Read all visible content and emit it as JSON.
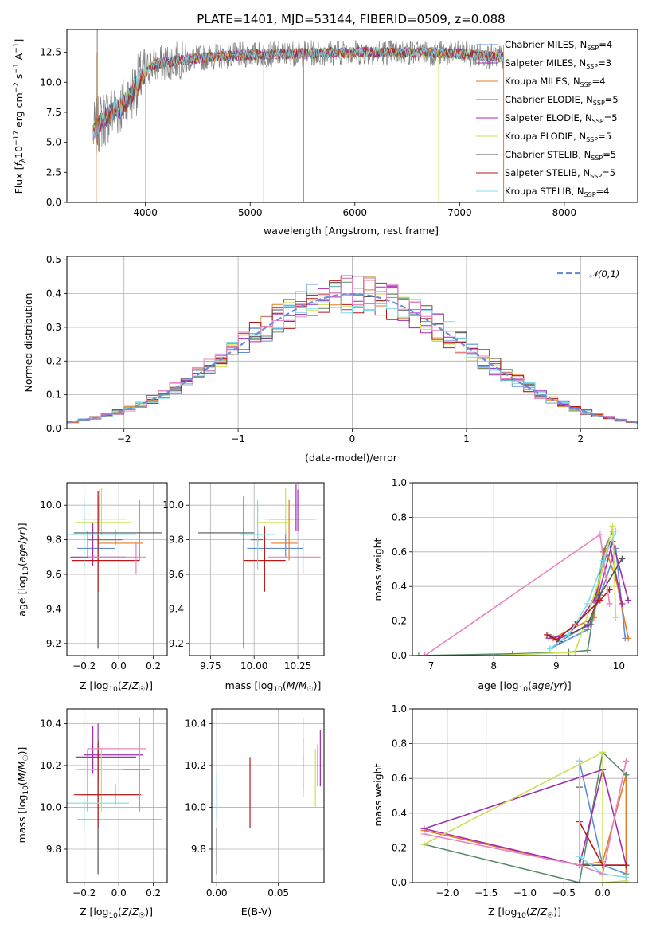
{
  "colors": {
    "chabrier_miles": "#5b8fd6",
    "salpeter_miles": "#9b30b0",
    "kroupa_miles": "#e07b28",
    "chabrier_elodie": "#5a8a6a",
    "salpeter_elodie": "#a52ab8",
    "kroupa_elodie": "#cfe050",
    "chabrier_stelib": "#555555",
    "salpeter_stelib": "#b81818",
    "kroupa_stelib": "#80dce8",
    "extra_pink": "#e884c0",
    "normal_curve": "#6a8fd8"
  },
  "chart_data": [
    {
      "id": "spectrum",
      "type": "line",
      "title": "PLATE=1401, MJD=53144, FIBERID=0509, z=0.088",
      "xlabel": "wavelength [Angstrom, rest frame]",
      "ylabel": "Flux [f_λ 10^-17 erg cm^-2 s^-1 A^-1]",
      "xlim": [
        3250,
        8700
      ],
      "ylim": [
        0,
        14.4
      ],
      "xticks": [
        "4000",
        "5000",
        "6000",
        "7000",
        "8000"
      ],
      "yticks": [
        "0.0",
        "2.5",
        "5.0",
        "7.5",
        "10.0",
        "12.5"
      ],
      "legend_position": "right",
      "legend": [
        "Chabrier MILES, N_SSP=4",
        "Salpeter MILES, N_SSP=3",
        "Kroupa MILES, N_SSP=4",
        "Chabrier ELODIE, N_SSP=5",
        "Salpeter ELODIE, N_SSP=5",
        "Kroupa ELODIE, N_SSP=5",
        "Chabrier STELIB, N_SSP=5",
        "Salpeter STELIB, N_SSP=5",
        "Kroupa STELIB, N_SSP=4"
      ],
      "continuum_x": [
        3500,
        3600,
        3800,
        3950,
        4050,
        4300,
        4600,
        5000,
        5500,
        6000,
        6500,
        7000,
        7500
      ],
      "continuum_y": [
        5.8,
        7.0,
        8.2,
        10.2,
        11.4,
        11.8,
        12.1,
        12.3,
        12.4,
        12.5,
        12.5,
        12.4,
        12.0
      ]
    },
    {
      "id": "residuals",
      "type": "line",
      "xlabel": "(data-model)/error",
      "ylabel": "Normed distribution",
      "xlim": [
        -2.5,
        2.5
      ],
      "ylim": [
        0,
        0.51
      ],
      "xticks": [
        "−2",
        "−1",
        "0",
        "1",
        "2"
      ],
      "yticks": [
        "0.0",
        "0.1",
        "0.2",
        "0.3",
        "0.4",
        "0.5"
      ],
      "legend_position": "top-right",
      "legend": [
        "𝒩(0,1)"
      ],
      "bin_width": 0.1,
      "grid": true
    },
    {
      "id": "age_vs_Z",
      "type": "scatter",
      "xlabel": "Z [log10(Z/Z☉)]",
      "ylabel": "age  [log10(age/yr)]",
      "xlim": [
        -0.3,
        0.28
      ],
      "ylim": [
        9.13,
        10.13
      ],
      "xticks": [
        "−0.2",
        "0.0",
        "0.2"
      ],
      "yticks": [
        "9.2",
        "9.4",
        "9.6",
        "9.8",
        "10.0"
      ],
      "points": [
        {
          "x": -0.18,
          "y": 9.75,
          "xerr": [
            0.06,
            0.16
          ],
          "yerr": [
            0.05,
            0.1
          ]
        },
        {
          "x": -0.11,
          "y": 9.92,
          "xerr": [
            0.1,
            0.16
          ],
          "yerr": [
            0.07,
            0.17
          ]
        },
        {
          "x": 0.12,
          "y": 9.78,
          "xerr": [
            0.24,
            0.02
          ],
          "yerr": [
            0.1,
            0.25
          ]
        },
        {
          "x": -0.02,
          "y": 9.8,
          "xerr": [
            0.16,
            0.04
          ],
          "yerr": [
            0.03,
            0.06
          ]
        },
        {
          "x": -0.15,
          "y": 9.7,
          "xerr": [
            0.13,
            0.19
          ],
          "yerr": [
            0.05,
            0.2
          ]
        },
        {
          "x": -0.1,
          "y": 9.9,
          "xerr": [
            0.15,
            0.17
          ],
          "yerr": [
            0.07,
            0.2
          ]
        },
        {
          "x": -0.12,
          "y": 9.84,
          "xerr": [
            0.14,
            0.37
          ],
          "yerr": [
            0.67,
            0.21
          ]
        },
        {
          "x": -0.12,
          "y": 9.68,
          "xerr": [
            0.15,
            0.24
          ],
          "yerr": [
            0.18,
            0.4
          ]
        },
        {
          "x": -0.2,
          "y": 9.83,
          "xerr": [
            0.11,
            0.3
          ],
          "yerr": [
            0.2,
            0.2
          ]
        },
        {
          "x": 0.1,
          "y": 9.7,
          "xerr": [
            0.28,
            0.06
          ],
          "yerr": [
            0.1,
            0.09
          ]
        }
      ]
    },
    {
      "id": "age_vs_mass",
      "type": "scatter",
      "xlabel": "mass [log10(M/M☉)]",
      "ylabel": "",
      "xlim": [
        9.63,
        10.4
      ],
      "ylim": [
        9.13,
        10.13
      ],
      "xticks": [
        "9.75",
        "10.00",
        "10.25"
      ],
      "yticks": [
        "9.2",
        "9.4",
        "9.6",
        "9.8",
        "10.0"
      ],
      "points": [
        {
          "x": 10.18,
          "y": 9.75,
          "xerr": [
            0.22,
            0.1
          ],
          "yerr": [
            0.05,
            0.1
          ]
        },
        {
          "x": 10.25,
          "y": 9.92,
          "xerr": [
            0.2,
            0.1
          ],
          "yerr": [
            0.07,
            0.17
          ]
        },
        {
          "x": 10.2,
          "y": 9.78,
          "xerr": [
            0.1,
            0.05
          ],
          "yerr": [
            0.1,
            0.25
          ]
        },
        {
          "x": 10.02,
          "y": 9.8,
          "xerr": [
            0.04,
            0.03
          ],
          "yerr": [
            0.03,
            0.06
          ]
        },
        {
          "x": 10.24,
          "y": 9.92,
          "xerr": [
            0.15,
            0.12
          ],
          "yerr": [
            0.07,
            0.2
          ]
        },
        {
          "x": 10.18,
          "y": 9.9,
          "xerr": [
            0.16,
            0.03
          ],
          "yerr": [
            0.07,
            0.2
          ]
        },
        {
          "x": 9.94,
          "y": 9.84,
          "xerr": [
            0.26,
            0.06
          ],
          "yerr": [
            0.67,
            0.21
          ]
        },
        {
          "x": 10.06,
          "y": 9.68,
          "xerr": [
            0.12,
            0.12
          ],
          "yerr": [
            0.18,
            0.2
          ]
        },
        {
          "x": 10.02,
          "y": 9.83,
          "xerr": [
            0.1,
            0.1
          ],
          "yerr": [
            0.2,
            0.2
          ]
        },
        {
          "x": 10.28,
          "y": 9.7,
          "xerr": [
            0.2,
            0.1
          ],
          "yerr": [
            0.1,
            0.09
          ]
        }
      ]
    },
    {
      "id": "weight_vs_age",
      "type": "line",
      "xlabel": "age  [log10(age/yr)]",
      "ylabel": "mass weight",
      "xlim": [
        6.7,
        10.3
      ],
      "ylim": [
        0,
        1
      ],
      "xticks": [
        "7",
        "8",
        "9",
        "10"
      ],
      "yticks": [
        "0.0",
        "0.2",
        "0.4",
        "0.6",
        "0.8",
        "1.0"
      ],
      "grid": true,
      "series": [
        {
          "color": "chabrier_miles",
          "x": [
            8.9,
            9.5,
            9.8,
            9.95,
            10.1
          ],
          "y": [
            0.04,
            0.15,
            0.45,
            0.62,
            0.1
          ]
        },
        {
          "color": "salpeter_miles",
          "x": [
            9.0,
            9.55,
            9.9,
            10.15
          ],
          "y": [
            0.09,
            0.18,
            0.66,
            0.32
          ]
        },
        {
          "color": "kroupa_miles",
          "x": [
            8.95,
            9.6,
            9.78,
            9.95,
            10.15
          ],
          "y": [
            0.1,
            0.22,
            0.62,
            0.45,
            0.1
          ]
        },
        {
          "color": "chabrier_elodie",
          "x": [
            6.8,
            8.3,
            9.2,
            9.5,
            9.75,
            9.9
          ],
          "y": [
            0.0,
            0.01,
            0.02,
            0.03,
            0.6,
            0.72
          ]
        },
        {
          "color": "salpeter_elodie",
          "x": [
            8.88,
            9.2,
            9.6,
            9.85,
            10.05
          ],
          "y": [
            0.1,
            0.12,
            0.32,
            0.65,
            0.3
          ]
        },
        {
          "color": "kroupa_elodie",
          "x": [
            8.0,
            9.3,
            9.7,
            9.9,
            9.95
          ],
          "y": [
            0.0,
            0.02,
            0.45,
            0.75,
            0.22
          ]
        },
        {
          "color": "chabrier_stelib",
          "x": [
            8.88,
            9.05,
            9.5,
            9.7,
            10.05
          ],
          "y": [
            0.12,
            0.08,
            0.18,
            0.35,
            0.56
          ]
        },
        {
          "color": "salpeter_stelib",
          "x": [
            8.85,
            9.0,
            9.3,
            9.7,
            9.85
          ],
          "y": [
            0.12,
            0.09,
            0.18,
            0.32,
            0.38
          ]
        },
        {
          "color": "kroupa_stelib",
          "x": [
            8.9,
            9.2,
            9.5,
            9.75,
            9.95
          ],
          "y": [
            0.04,
            0.12,
            0.3,
            0.55,
            0.72
          ]
        },
        {
          "color": "extra_pink",
          "x": [
            6.9,
            9.7,
            9.85
          ],
          "y": [
            0.0,
            0.7,
            0.3
          ]
        }
      ]
    },
    {
      "id": "mass_vs_Z",
      "type": "scatter",
      "xlabel": "Z [log10(Z/Z☉)]",
      "ylabel": "mass [log10(M/M☉)]",
      "xlim": [
        -0.3,
        0.28
      ],
      "ylim": [
        9.64,
        10.47
      ],
      "xticks": [
        "−0.2",
        "0.0",
        "0.2"
      ],
      "yticks": [
        "9.8",
        "10.0",
        "10.2",
        "10.4"
      ],
      "points": [
        {
          "x": -0.18,
          "y": 10.18,
          "xerr": [
            0.05,
            0.3
          ],
          "yerr": [
            0.2,
            0.1
          ]
        },
        {
          "x": -0.12,
          "y": 10.25,
          "xerr": [
            0.08,
            0.26
          ],
          "yerr": [
            0.12,
            0.15
          ]
        },
        {
          "x": 0.12,
          "y": 10.18,
          "xerr": [
            0.3,
            0.06
          ],
          "yerr": [
            0.2,
            0.12
          ]
        },
        {
          "x": -0.02,
          "y": 10.06,
          "xerr": [
            0.2,
            0.14
          ],
          "yerr": [
            0.05,
            0.05
          ]
        },
        {
          "x": -0.15,
          "y": 10.24,
          "xerr": [
            0.1,
            0.25
          ],
          "yerr": [
            0.08,
            0.15
          ]
        },
        {
          "x": -0.1,
          "y": 10.18,
          "xerr": [
            0.15,
            0.12
          ],
          "yerr": [
            0.2,
            0.1
          ]
        },
        {
          "x": -0.12,
          "y": 9.94,
          "xerr": [
            0.12,
            0.37
          ],
          "yerr": [
            0.26,
            0.38
          ]
        },
        {
          "x": -0.12,
          "y": 10.06,
          "xerr": [
            0.14,
            0.25
          ],
          "yerr": [
            0.16,
            0.25
          ]
        },
        {
          "x": -0.2,
          "y": 10.02,
          "xerr": [
            0.1,
            0.26
          ],
          "yerr": [
            0.12,
            0.02
          ]
        },
        {
          "x": 0.12,
          "y": 10.28,
          "xerr": [
            0.3,
            0.04
          ],
          "yerr": [
            0.23,
            0.15
          ]
        }
      ]
    },
    {
      "id": "mass_vs_ebv",
      "type": "scatter",
      "xlabel": "E(B-V)",
      "ylabel": "",
      "xlim": [
        -0.004,
        0.087
      ],
      "ylim": [
        9.64,
        10.47
      ],
      "xticks": [
        "0.00",
        "0.05"
      ],
      "yticks": [
        "9.8",
        "10.0",
        "10.2",
        "10.4"
      ],
      "points": [
        {
          "color": "chabrier_stelib",
          "x": 0.0,
          "y": 9.78,
          "yerr": [
            0.1,
            0.12
          ]
        },
        {
          "color": "kroupa_stelib",
          "x": 0.0,
          "y": 10.05,
          "yerr": [
            0.12,
            0.12
          ]
        },
        {
          "color": "salpeter_stelib",
          "x": 0.027,
          "y": 10.07,
          "yerr": [
            0.17,
            0.17
          ]
        },
        {
          "color": "chabrier_miles",
          "x": 0.07,
          "y": 10.13,
          "yerr": [
            0.08,
            0.12
          ]
        },
        {
          "color": "kroupa_miles",
          "x": 0.07,
          "y": 10.21,
          "yerr": [
            0.12,
            0.12
          ]
        },
        {
          "color": "extra_pink",
          "x": 0.07,
          "y": 10.28,
          "yerr": [
            0.07,
            0.15
          ]
        },
        {
          "color": "kroupa_elodie",
          "x": 0.08,
          "y": 10.18,
          "yerr": [
            0.18,
            0.1
          ]
        },
        {
          "color": "chabrier_stelib",
          "x": 0.082,
          "y": 10.2,
          "yerr": [
            0.1,
            0.1
          ]
        },
        {
          "color": "salpeter_elodie",
          "x": 0.084,
          "y": 10.22,
          "yerr": [
            0.12,
            0.15
          ]
        }
      ]
    },
    {
      "id": "weight_vs_Z",
      "type": "line",
      "xlabel": "Z [log10(Z/Z☉)]",
      "ylabel": "mass weight",
      "xlim": [
        -2.45,
        0.45
      ],
      "ylim": [
        0,
        1
      ],
      "xticks": [
        "−2.0",
        "−1.5",
        "−1.0",
        "−0.5",
        "0.0"
      ],
      "yticks": [
        "0.0",
        "0.2",
        "0.4",
        "0.6",
        "0.8",
        "1.0"
      ],
      "grid": true,
      "series": [
        {
          "color": "chabrier_miles",
          "x": [
            -0.3,
            -0.3,
            0.0,
            0.3
          ],
          "y": [
            0.1,
            0.7,
            0.1,
            0.05
          ]
        },
        {
          "color": "salpeter_miles",
          "x": [
            -2.3,
            0.0
          ],
          "y": [
            0.31,
            0.65
          ]
        },
        {
          "color": "kroupa_miles",
          "x": [
            -2.3,
            -0.3,
            0.0,
            0.3,
            0.3
          ],
          "y": [
            0.3,
            0.1,
            0.12,
            0.62,
            0.0
          ]
        },
        {
          "color": "chabrier_elodie",
          "x": [
            -2.3,
            -0.3,
            0.0,
            0.3
          ],
          "y": [
            0.22,
            0.0,
            0.75,
            0.62
          ]
        },
        {
          "color": "salpeter_elodie",
          "x": [
            -2.3,
            -0.3,
            0.0,
            0.3
          ],
          "y": [
            0.31,
            0.1,
            0.65,
            0.1
          ]
        },
        {
          "color": "kroupa_elodie",
          "x": [
            -2.3,
            0.0,
            0.0,
            0.3
          ],
          "y": [
            0.22,
            0.75,
            0.0,
            0.01
          ]
        },
        {
          "color": "chabrier_stelib",
          "x": [
            -0.3,
            -0.3,
            0.0,
            0.3
          ],
          "y": [
            0.55,
            0.1,
            0.1,
            0.1
          ]
        },
        {
          "color": "salpeter_stelib",
          "x": [
            -0.3,
            0.0,
            0.3
          ],
          "y": [
            0.35,
            0.1,
            0.1
          ]
        },
        {
          "color": "kroupa_stelib",
          "x": [
            -0.3,
            -0.3,
            0.0,
            0.3
          ],
          "y": [
            0.7,
            0.15,
            0.05,
            0.03
          ]
        },
        {
          "color": "extra_pink",
          "x": [
            -2.3,
            -0.3,
            0.0,
            0.3
          ],
          "y": [
            0.28,
            0.1,
            0.05,
            0.7
          ]
        }
      ]
    }
  ]
}
